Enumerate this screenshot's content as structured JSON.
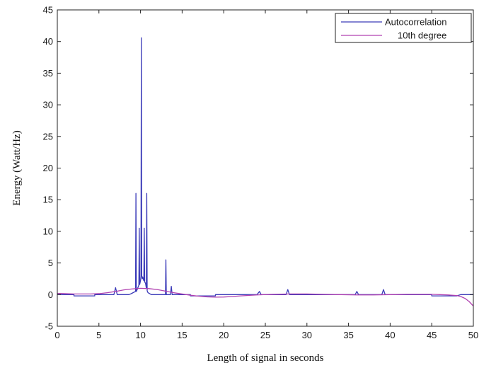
{
  "chart_data": {
    "type": "line",
    "title": "",
    "xlabel": "Length of signal in seconds",
    "ylabel": "Energy (Watt/Hz)",
    "xlim": [
      0,
      50
    ],
    "ylim": [
      -5,
      45
    ],
    "xticks": [
      "0",
      "5",
      "10",
      "15",
      "20",
      "25",
      "30",
      "35",
      "40",
      "45",
      "50"
    ],
    "yticks": [
      "-5",
      "0",
      "5",
      "10",
      "15",
      "20",
      "25",
      "30",
      "35",
      "40",
      "45"
    ],
    "grid": false,
    "legend_position": "top-right",
    "series": [
      {
        "name": "Autocorrelation",
        "color": "#3a3ab8",
        "x": [
          0,
          2,
          2,
          4.5,
          4.5,
          6.8,
          7,
          7.2,
          7.4,
          8,
          8.6,
          8.8,
          9.1,
          9.4,
          9.45,
          9.5,
          9.6,
          9.8,
          9.85,
          9.9,
          10.0,
          10.05,
          10.1,
          10.15,
          10.2,
          10.25,
          10.4,
          10.45,
          10.5,
          10.6,
          10.7,
          10.75,
          10.8,
          10.9,
          11.3,
          12.5,
          13.0,
          13.05,
          13.1,
          13.6,
          13.7,
          13.8,
          14.5,
          16,
          16,
          19,
          19,
          24,
          24.3,
          24.5,
          27.5,
          27.7,
          27.9,
          30,
          33.5,
          35.8,
          36,
          36.2,
          37,
          39,
          39.2,
          39.4,
          42,
          45,
          45,
          48,
          48.5,
          49.2,
          49.5,
          50
        ],
        "y": [
          0,
          0,
          -0.2,
          -0.2,
          0,
          0,
          1.1,
          0,
          0,
          0,
          0,
          0.1,
          0.3,
          0.5,
          16,
          0.5,
          0.8,
          1.5,
          10.5,
          1.6,
          2.2,
          2.9,
          40.6,
          2.9,
          2.5,
          2.8,
          2.2,
          10.5,
          2.0,
          1.8,
          1.0,
          16,
          0.6,
          0.3,
          0,
          0,
          0,
          5.5,
          0,
          0,
          1.3,
          0,
          0,
          0,
          -0.2,
          -0.2,
          0,
          0,
          0.5,
          0,
          0,
          0.8,
          0,
          0,
          0,
          0,
          0.5,
          0,
          0,
          0,
          0.8,
          0,
          0,
          0,
          -0.2,
          -0.2,
          0,
          0,
          0,
          0
        ]
      },
      {
        "name": "10th degree",
        "color": "#b040b0",
        "x": [
          0,
          2,
          4,
          5,
          6,
          7,
          8,
          9,
          10,
          11,
          12,
          13,
          14,
          15,
          16,
          17,
          18,
          19,
          20,
          21,
          22,
          24,
          26,
          28,
          30,
          32,
          34,
          36,
          38,
          40,
          42,
          44,
          45,
          46,
          47,
          48,
          48.5,
          49,
          49.5,
          50
        ],
        "y": [
          0.2,
          0.1,
          0.1,
          0.15,
          0.3,
          0.5,
          0.75,
          0.9,
          1.0,
          0.95,
          0.8,
          0.55,
          0.3,
          0.1,
          -0.1,
          -0.25,
          -0.35,
          -0.4,
          -0.38,
          -0.3,
          -0.2,
          -0.05,
          0.05,
          0.1,
          0.1,
          0.05,
          0.0,
          -0.05,
          -0.05,
          0.0,
          0.05,
          0.05,
          0.05,
          0.0,
          -0.05,
          -0.15,
          -0.3,
          -0.6,
          -1.1,
          -1.8
        ]
      }
    ]
  }
}
